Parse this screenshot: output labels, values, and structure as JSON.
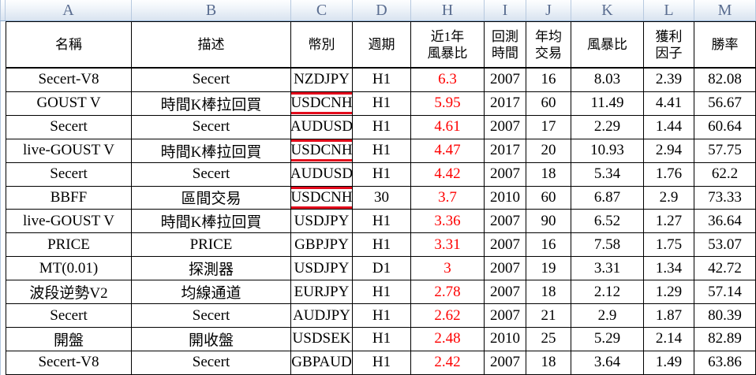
{
  "app": {
    "kind": "spreadsheet-table"
  },
  "colors": {
    "red_value_text": "#fe0000",
    "red_annotation_box": "#e30b1c",
    "band_letter": "#5a6d90",
    "band_background_bottom": "#d8e3f0",
    "grid_line": "#000000"
  },
  "column_band": {
    "letters": [
      "A",
      "B",
      "C",
      "D",
      "H",
      "I",
      "J",
      "K",
      "L",
      "M"
    ]
  },
  "table": {
    "headers": [
      {
        "col": "A",
        "lines": [
          "名稱"
        ]
      },
      {
        "col": "B",
        "lines": [
          "描述"
        ]
      },
      {
        "col": "C",
        "lines": [
          "幣別"
        ]
      },
      {
        "col": "D",
        "lines": [
          "週期"
        ]
      },
      {
        "col": "H",
        "lines": [
          "近1年",
          "風暴比"
        ]
      },
      {
        "col": "I",
        "lines": [
          "回測",
          "時間"
        ]
      },
      {
        "col": "J",
        "lines": [
          "年均",
          "交易"
        ]
      },
      {
        "col": "K",
        "lines": [
          "風暴比"
        ]
      },
      {
        "col": "L",
        "lines": [
          "獲利",
          "因子"
        ]
      },
      {
        "col": "M",
        "lines": [
          "勝率"
        ]
      }
    ],
    "rows": [
      {
        "name": "Secert-V8",
        "desc": "Secert",
        "currency": "NZDJPY",
        "boxed": false,
        "period": "H1",
        "recent": "6.3",
        "year": "2007",
        "trades": "16",
        "storm": "8.03",
        "pf": "2.39",
        "win": "82.08"
      },
      {
        "name": "GOUST V",
        "desc": "時間K棒拉回買",
        "currency": "USDCNH",
        "boxed": true,
        "period": "H1",
        "recent": "5.95",
        "year": "2017",
        "trades": "60",
        "storm": "11.49",
        "pf": "4.41",
        "win": "56.67"
      },
      {
        "name": "Secert",
        "desc": "Secert",
        "currency": "AUDUSD",
        "boxed": false,
        "period": "H1",
        "recent": "4.61",
        "year": "2007",
        "trades": "17",
        "storm": "2.29",
        "pf": "1.44",
        "win": "60.64"
      },
      {
        "name": "live-GOUST V",
        "desc": "時間K棒拉回買",
        "currency": "USDCNH",
        "boxed": true,
        "period": "H1",
        "recent": "4.47",
        "year": "2017",
        "trades": "20",
        "storm": "10.93",
        "pf": "2.94",
        "win": "57.75"
      },
      {
        "name": "Secert",
        "desc": "Secert",
        "currency": "AUDUSD",
        "boxed": false,
        "period": "H1",
        "recent": "4.42",
        "year": "2007",
        "trades": "18",
        "storm": "5.34",
        "pf": "1.76",
        "win": "62.2"
      },
      {
        "name": "BBFF",
        "desc": "區間交易",
        "currency": "USDCNH",
        "boxed": true,
        "period": "30",
        "recent": "3.7",
        "year": "2010",
        "trades": "60",
        "storm": "6.87",
        "pf": "2.9",
        "win": "73.33"
      },
      {
        "name": "live-GOUST V",
        "desc": "時間K棒拉回買",
        "currency": "USDJPY",
        "boxed": false,
        "period": "H1",
        "recent": "3.36",
        "year": "2007",
        "trades": "90",
        "storm": "6.52",
        "pf": "1.27",
        "win": "36.64"
      },
      {
        "name": "PRICE",
        "desc": "PRICE",
        "currency": "GBPJPY",
        "boxed": false,
        "period": "H1",
        "recent": "3.31",
        "year": "2007",
        "trades": "16",
        "storm": "7.58",
        "pf": "1.75",
        "win": "53.07"
      },
      {
        "name": "MT(0.01)",
        "desc": "探測器",
        "currency": "USDJPY",
        "boxed": false,
        "period": "D1",
        "recent": "3",
        "year": "2007",
        "trades": "19",
        "storm": "3.31",
        "pf": "1.34",
        "win": "42.72"
      },
      {
        "name": "波段逆勢V2",
        "desc": "均線通道",
        "currency": "EURJPY",
        "boxed": false,
        "period": "H1",
        "recent": "2.78",
        "year": "2007",
        "trades": "18",
        "storm": "2.12",
        "pf": "1.29",
        "win": "57.14"
      },
      {
        "name": "Secert",
        "desc": "Secert",
        "currency": "AUDJPY",
        "boxed": false,
        "period": "H1",
        "recent": "2.62",
        "year": "2007",
        "trades": "21",
        "storm": "2.9",
        "pf": "1.87",
        "win": "80.39"
      },
      {
        "name": "開盤",
        "desc": "開收盤",
        "currency": "USDSEK",
        "boxed": false,
        "period": "H1",
        "recent": "2.48",
        "year": "2010",
        "trades": "25",
        "storm": "5.29",
        "pf": "2.14",
        "win": "82.89"
      },
      {
        "name": "Secert-V8",
        "desc": "Secert",
        "currency": "GBPAUD",
        "boxed": false,
        "period": "H1",
        "recent": "2.42",
        "year": "2007",
        "trades": "18",
        "storm": "3.64",
        "pf": "1.49",
        "win": "63.86"
      }
    ]
  }
}
